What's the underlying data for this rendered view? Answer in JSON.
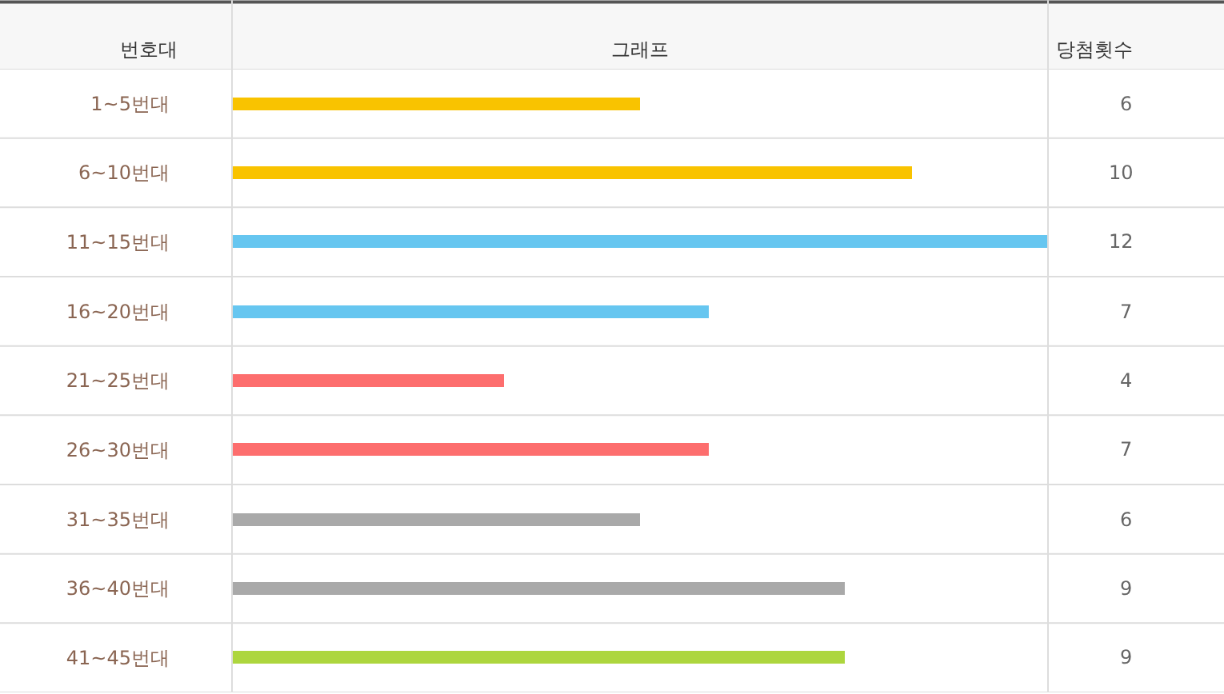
{
  "chart_data": {
    "type": "bar",
    "orientation": "horizontal",
    "title": "그래프",
    "ylabel": "번호대",
    "annotations": [
      "당첨횟수"
    ],
    "categories": [
      "1~5번대",
      "6~10번대",
      "11~15번대",
      "16~20번대",
      "21~25번대",
      "26~30번대",
      "31~35번대",
      "36~40번대",
      "41~45번대"
    ],
    "values": [
      6,
      10,
      12,
      7,
      4,
      7,
      6,
      9,
      9
    ],
    "colors": [
      "#f9c300",
      "#f9c300",
      "#66c6f0",
      "#66c6f0",
      "#fd6e6e",
      "#fd6e6e",
      "#a9a9a9",
      "#a9a9a9",
      "#add63e"
    ],
    "data_labels": true
  }
}
